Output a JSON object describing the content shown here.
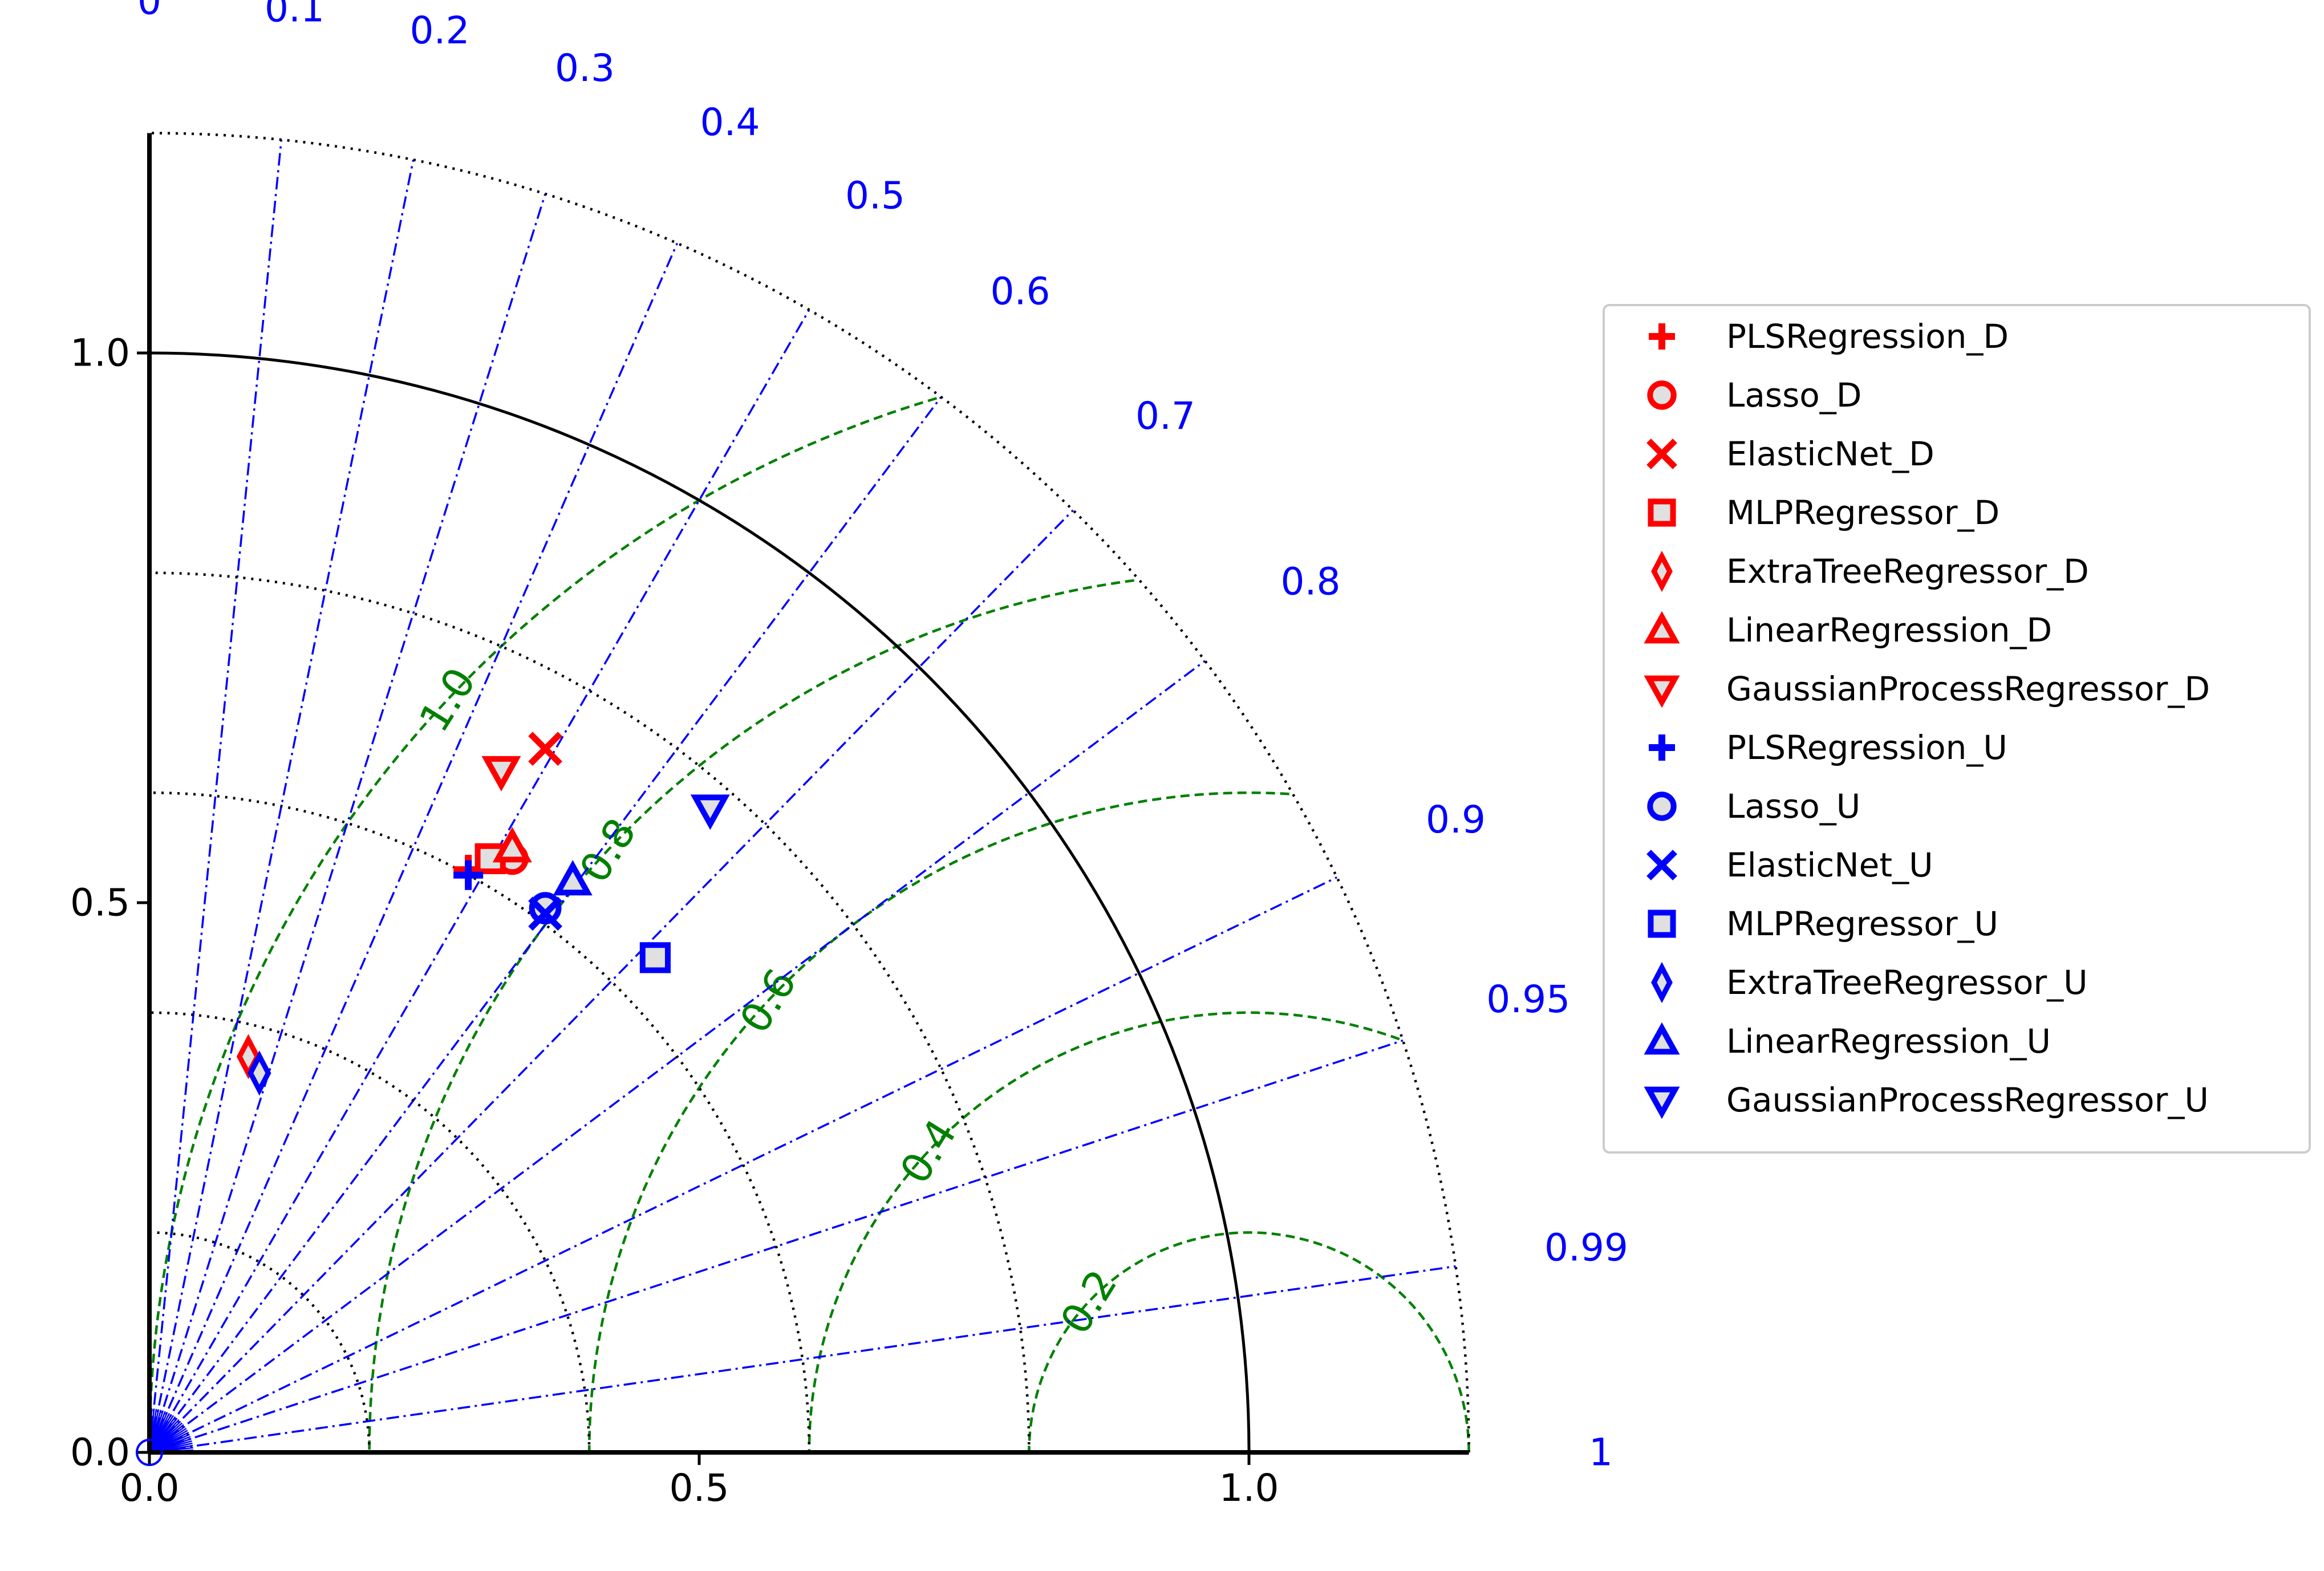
{
  "chart_data": {
    "type": "scatter",
    "subtype": "taylor-diagram",
    "title": "",
    "xlabel": "",
    "ylabel": "",
    "reference_std": 1.0,
    "std_range": [
      0,
      1.2
    ],
    "std_ticks": [
      "0.0",
      "0.5",
      "1.0"
    ],
    "std_tick_values": [
      0.0,
      0.5,
      1.0
    ],
    "std_dotted_circles": [
      0.2,
      0.4,
      0.6,
      0.8,
      1.2
    ],
    "correlation_ticks": [
      "0",
      "0.1",
      "0.2",
      "0.3",
      "0.4",
      "0.5",
      "0.6",
      "0.7",
      "0.8",
      "0.9",
      "0.95",
      "0.99",
      "1"
    ],
    "correlation_values": [
      0,
      0.1,
      0.2,
      0.3,
      0.4,
      0.5,
      0.6,
      0.7,
      0.8,
      0.9,
      0.95,
      0.99,
      1
    ],
    "rms_contours": [
      "0.2",
      "0.4",
      "0.6",
      "0.8",
      "1.0"
    ],
    "rms_contour_values": [
      0.2,
      0.4,
      0.6,
      0.8,
      1.0
    ],
    "legend_position": "right",
    "colors": {
      "D": "#ff0000",
      "U": "#0000ff",
      "corr": "#0000ff",
      "rms": "#008000",
      "axis": "#000000"
    },
    "series": [
      {
        "name": "PLSRegression_D",
        "marker": "plus",
        "group": "D",
        "x": 0.29,
        "y": 0.53
      },
      {
        "name": "Lasso_D",
        "marker": "circle",
        "group": "D",
        "x": 0.33,
        "y": 0.54
      },
      {
        "name": "ElasticNet_D",
        "marker": "x",
        "group": "D",
        "x": 0.36,
        "y": 0.64
      },
      {
        "name": "MLPRegressor_D",
        "marker": "square",
        "group": "D",
        "x": 0.31,
        "y": 0.54
      },
      {
        "name": "ExtraTreeRegressor_D",
        "marker": "diamond",
        "group": "D",
        "x": 0.09,
        "y": 0.36
      },
      {
        "name": "LinearRegression_D",
        "marker": "triangle-up",
        "group": "D",
        "x": 0.33,
        "y": 0.55
      },
      {
        "name": "GaussianProcessRegressor_D",
        "marker": "triangle-down",
        "group": "D",
        "x": 0.32,
        "y": 0.62
      },
      {
        "name": "PLSRegression_U",
        "marker": "plus",
        "group": "U",
        "x": 0.29,
        "y": 0.525
      },
      {
        "name": "Lasso_U",
        "marker": "circle",
        "group": "U",
        "x": 0.36,
        "y": 0.495
      },
      {
        "name": "ElasticNet_U",
        "marker": "x",
        "group": "U",
        "x": 0.36,
        "y": 0.49
      },
      {
        "name": "MLPRegressor_U",
        "marker": "square",
        "group": "U",
        "x": 0.46,
        "y": 0.45
      },
      {
        "name": "ExtraTreeRegressor_U",
        "marker": "diamond",
        "group": "U",
        "x": 0.1,
        "y": 0.345
      },
      {
        "name": "LinearRegression_U",
        "marker": "triangle-up",
        "group": "U",
        "x": 0.385,
        "y": 0.52
      },
      {
        "name": "GaussianProcessRegressor_U",
        "marker": "triangle-down",
        "group": "U",
        "x": 0.51,
        "y": 0.585
      }
    ]
  }
}
